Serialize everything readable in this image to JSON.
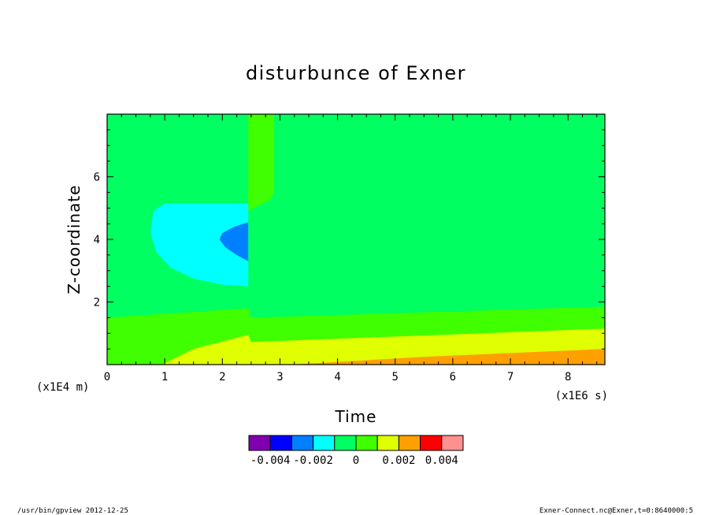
{
  "chart_data": {
    "type": "heatmap",
    "title": "disturbunce of Exner",
    "xlabel": "Time",
    "ylabel": "Z-coordinate",
    "x_unit": "(x1E6 s)",
    "y_unit": "(x1E4 m)",
    "xlim": [
      0,
      8.64
    ],
    "ylim": [
      0,
      8.0
    ],
    "x_ticks": [
      "0",
      "1",
      "2",
      "3",
      "4",
      "5",
      "6",
      "7",
      "8"
    ],
    "y_ticks": [
      "2",
      "4",
      "6"
    ],
    "colorbar": {
      "levels": [
        -0.005,
        -0.004,
        -0.003,
        -0.002,
        -0.001,
        0,
        0.001,
        0.002,
        0.003,
        0.004,
        0.005
      ],
      "colors": [
        "#8000b0",
        "#0000ff",
        "#0080ff",
        "#00ffff",
        "#00ff60",
        "#40ff00",
        "#e0ff00",
        "#ffa000",
        "#ff0000",
        "#ff9090"
      ],
      "labels": [
        {
          "text": "-0.004",
          "value": -0.004
        },
        {
          "text": "-0.002",
          "value": -0.002
        },
        {
          "text": "0",
          "value": 0
        },
        {
          "text": "0.002",
          "value": 0.002
        },
        {
          "text": "0.004",
          "value": 0.004
        }
      ]
    },
    "regions": [
      {
        "name": "near-zero-background",
        "band": [
          -0.001,
          0.0
        ],
        "color": "#00ff60"
      },
      {
        "name": "positive-weak-upper-column",
        "band": [
          0.0,
          0.001
        ],
        "color": "#40ff00",
        "polygon": [
          [
            2.45,
            8.0
          ],
          [
            2.9,
            8.0
          ],
          [
            2.9,
            5.5
          ],
          [
            2.82,
            5.25
          ],
          [
            2.6,
            5.05
          ],
          [
            2.45,
            4.9
          ]
        ]
      },
      {
        "name": "positive-weak-lower-layer",
        "band": [
          0.0,
          0.001
        ],
        "color": "#40ff00",
        "polygon": [
          [
            0,
            0
          ],
          [
            8.64,
            0
          ],
          [
            8.64,
            1.85
          ],
          [
            2.5,
            1.5
          ],
          [
            2.45,
            1.8
          ],
          [
            0,
            1.5
          ]
        ]
      },
      {
        "name": "positive-moderate-layer",
        "band": [
          0.001,
          0.002
        ],
        "color": "#e0ff00",
        "polygon": [
          [
            0.95,
            0
          ],
          [
            8.64,
            0
          ],
          [
            8.64,
            1.15
          ],
          [
            2.5,
            0.72
          ],
          [
            2.45,
            0.95
          ],
          [
            1.5,
            0.5
          ],
          [
            0.95,
            0
          ]
        ]
      },
      {
        "name": "positive-strong-layer",
        "band": [
          0.002,
          0.003
        ],
        "color": "#ffa000",
        "polygon": [
          [
            3.2,
            0
          ],
          [
            8.64,
            0
          ],
          [
            8.64,
            0.5
          ],
          [
            5.5,
            0.25
          ],
          [
            3.2,
            0
          ]
        ]
      },
      {
        "name": "negative-weak-lobe",
        "band": [
          -0.002,
          -0.001
        ],
        "color": "#00ffff",
        "polygon": [
          [
            2.45,
            5.15
          ],
          [
            1.0,
            5.15
          ],
          [
            0.8,
            4.9
          ],
          [
            0.75,
            4.2
          ],
          [
            0.85,
            3.6
          ],
          [
            1.1,
            3.1
          ],
          [
            1.5,
            2.75
          ],
          [
            2.0,
            2.55
          ],
          [
            2.45,
            2.5
          ]
        ]
      },
      {
        "name": "negative-moderate-core",
        "band": [
          -0.003,
          -0.002
        ],
        "color": "#0080ff",
        "polygon": [
          [
            2.45,
            4.55
          ],
          [
            2.2,
            4.4
          ],
          [
            2.0,
            4.2
          ],
          [
            1.95,
            4.0
          ],
          [
            2.05,
            3.75
          ],
          [
            2.25,
            3.5
          ],
          [
            2.45,
            3.3
          ]
        ]
      }
    ]
  },
  "footer": {
    "left": "/usr/bin/gpview  2012-12-25",
    "right": "Exner-Connect.nc@Exner,t=0:8640000:5"
  }
}
